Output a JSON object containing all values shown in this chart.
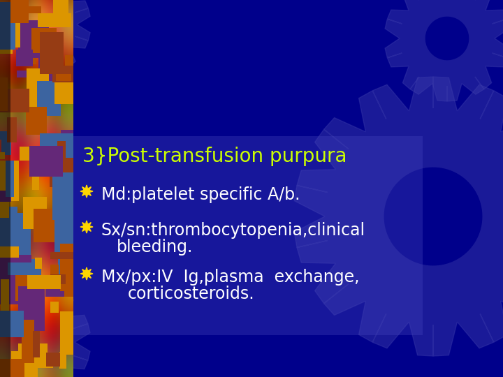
{
  "bg_color": "#00008B",
  "title": "3}Post-transfusion purpura",
  "title_color": "#CCFF00",
  "title_fontsize": 20,
  "bullet_color": "#FFD700",
  "text_color": "#FFFFFF",
  "bullet_fontsize": 17,
  "bullets": [
    "Md:platelet specific A/b.",
    "Sx/sn:thrombocytopenia,clinical\n    bleeding.",
    "Mx/px:IV  Ig,plasma  exchange,\n        corticosteroids."
  ],
  "gear_color": "#3A3AAA",
  "gear_alpha": 0.45,
  "panel_color": "#4444BB",
  "panel_alpha": 0.35
}
